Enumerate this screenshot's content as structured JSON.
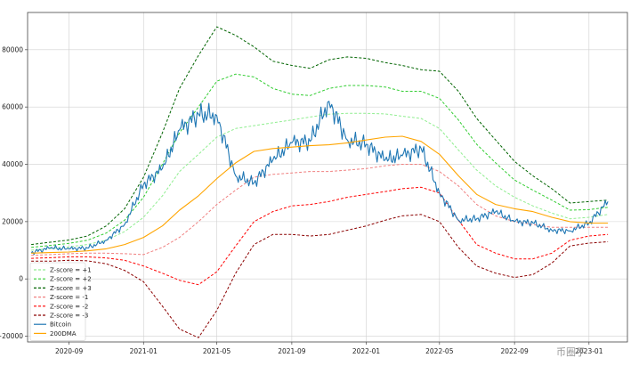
{
  "chart_data": {
    "type": "line",
    "title": "",
    "xlabel": "",
    "ylabel": "",
    "ylim": [
      -22000,
      93000
    ],
    "xlim": [
      "2020-06-25",
      "2023-03-05"
    ],
    "grid": true,
    "legend_position": "lower-left",
    "x_ticks": [
      {
        "date": "2020-09-01",
        "label": "2020-09"
      },
      {
        "date": "2021-01-01",
        "label": "2021-01"
      },
      {
        "date": "2021-05-01",
        "label": "2021-05"
      },
      {
        "date": "2021-09-01",
        "label": "2021-09"
      },
      {
        "date": "2022-01-01",
        "label": "2022-01"
      },
      {
        "date": "2022-05-01",
        "label": "2022-05"
      },
      {
        "date": "2022-09-01",
        "label": "2022-09"
      },
      {
        "date": "2023-01-01",
        "label": "2023-01"
      }
    ],
    "y_ticks": [
      {
        "value": -20000,
        "label": "−20000"
      },
      {
        "value": 0,
        "label": "0"
      },
      {
        "value": 20000,
        "label": "20000"
      },
      {
        "value": 40000,
        "label": "40000"
      },
      {
        "value": 60000,
        "label": "60000"
      },
      {
        "value": 80000,
        "label": "80000"
      }
    ],
    "x_dates": [
      "2020-07-01",
      "2020-08-01",
      "2020-09-01",
      "2020-10-01",
      "2020-11-01",
      "2020-12-01",
      "2021-01-01",
      "2021-02-01",
      "2021-03-01",
      "2021-04-01",
      "2021-05-01",
      "2021-06-01",
      "2021-07-01",
      "2021-08-01",
      "2021-09-01",
      "2021-10-01",
      "2021-11-01",
      "2021-12-01",
      "2022-01-01",
      "2022-02-01",
      "2022-03-01",
      "2022-04-01",
      "2022-05-01",
      "2022-06-01",
      "2022-07-01",
      "2022-08-01",
      "2022-09-01",
      "2022-10-01",
      "2022-11-01",
      "2022-12-01",
      "2023-01-01",
      "2023-02-01"
    ],
    "series": [
      {
        "name": "Z-score = +1",
        "color": "#90ee90",
        "dash": "dashed",
        "values": [
          10000,
          10600,
          11200,
          12000,
          13500,
          16500,
          21500,
          29000,
          37500,
          43500,
          49500,
          52500,
          53500,
          54500,
          55500,
          56500,
          57500,
          57800,
          57800,
          57600,
          56800,
          56000,
          52500,
          45000,
          38000,
          32500,
          28500,
          25500,
          23000,
          21000,
          21500,
          22500
        ]
      },
      {
        "name": "Z-score = +2",
        "color": "#32cd32",
        "dash": "dashed",
        "values": [
          11000,
          11700,
          12400,
          13500,
          16000,
          20500,
          28500,
          40000,
          51000,
          60000,
          69000,
          71500,
          70500,
          66500,
          64500,
          64000,
          66500,
          67500,
          67500,
          67000,
          65500,
          65500,
          63000,
          55500,
          47000,
          40500,
          34500,
          31000,
          27500,
          24000,
          24200,
          25000
        ]
      },
      {
        "name": "Z-score = +3",
        "color": "#006400",
        "dash": "dashed",
        "values": [
          12000,
          12800,
          13600,
          15000,
          18500,
          24500,
          35500,
          51000,
          66500,
          78000,
          88000,
          85000,
          81000,
          76000,
          74500,
          73500,
          76500,
          77500,
          77000,
          75500,
          74500,
          73000,
          72500,
          65500,
          56000,
          48500,
          41000,
          36000,
          31500,
          26500,
          27000,
          27500
        ]
      },
      {
        "name": "Z-score = -1",
        "color": "#f08080",
        "dash": "dashed",
        "values": [
          8200,
          8500,
          8800,
          9000,
          9000,
          8800,
          8500,
          11000,
          14500,
          20000,
          26000,
          31000,
          35500,
          36500,
          37000,
          37500,
          37500,
          38000,
          38500,
          39500,
          40000,
          40000,
          37500,
          32500,
          26000,
          22000,
          20000,
          19000,
          18000,
          18000,
          18000,
          18000
        ]
      },
      {
        "name": "Z-score = -2",
        "color": "#ff0000",
        "dash": "dashed",
        "values": [
          7200,
          7400,
          7700,
          7700,
          7300,
          6500,
          4500,
          2000,
          -500,
          -2000,
          2500,
          11500,
          20000,
          23500,
          25500,
          26000,
          27000,
          28500,
          29500,
          30500,
          31500,
          32000,
          30000,
          20500,
          12000,
          9000,
          7000,
          7000,
          9000,
          13500,
          15000,
          15500
        ]
      },
      {
        "name": "Z-score = -3",
        "color": "#8b0000",
        "dash": "dashed",
        "values": [
          6200,
          6200,
          6500,
          6300,
          5300,
          3000,
          -1000,
          -9500,
          -17500,
          -20500,
          -11000,
          2000,
          12000,
          15500,
          15500,
          15000,
          15500,
          17000,
          18500,
          20500,
          22000,
          22500,
          20000,
          11000,
          4500,
          2000,
          500,
          1500,
          5500,
          11500,
          12500,
          13000
        ]
      },
      {
        "name": "Bitcoin",
        "color": "#1f77b4",
        "dash": "solid",
        "values": [
          9200,
          10800,
          10500,
          10800,
          13500,
          19000,
          33000,
          38500,
          52000,
          57500,
          57000,
          36000,
          33500,
          41500,
          47500,
          48000,
          62000,
          48500,
          47000,
          41500,
          43000,
          45500,
          30000,
          20500,
          21000,
          23500,
          20000,
          19600,
          17000,
          16800,
          19500,
          27000
        ]
      },
      {
        "name": "200DMA",
        "color": "#ffa500",
        "dash": "solid",
        "values": [
          9000,
          9200,
          9400,
          9800,
          10500,
          12000,
          14500,
          18500,
          24000,
          29000,
          35000,
          40500,
          44500,
          45500,
          46000,
          46500,
          46800,
          47500,
          48500,
          49500,
          49800,
          48000,
          43500,
          36000,
          29500,
          26000,
          24500,
          23500,
          21500,
          20000,
          19500,
          19500
        ]
      }
    ]
  },
  "watermark": "币圈子"
}
